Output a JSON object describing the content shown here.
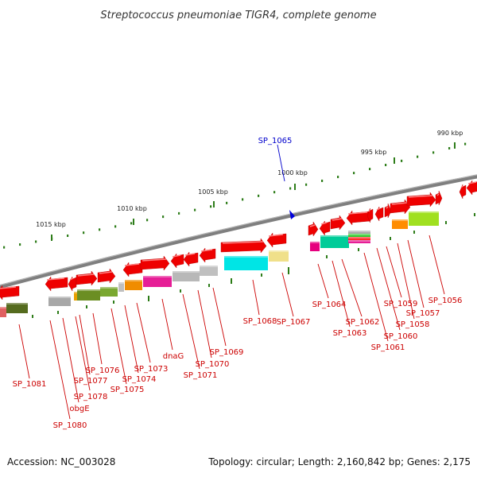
{
  "title": "Streptococcus pneumoniae TIGR4, complete genome",
  "footer": {
    "accession": "Accession: NC_003028",
    "summary": "Topology: circular; Length: 2,160,842 bp; Genes: 2,175"
  },
  "colors": {
    "backbone": "#7a7a7a",
    "tick": "#2e7d1a",
    "label": "#cc0000",
    "highlight": "#0000cc",
    "gene": "#ee0000"
  },
  "ticks": [
    {
      "text": "990 kbp"
    },
    {
      "text": "995 kbp"
    },
    {
      "text": "1000 kbp"
    },
    {
      "text": "1005 kbp"
    },
    {
      "text": "1010 kbp"
    },
    {
      "text": "1015 kbp"
    }
  ],
  "genes": [
    {
      "name": "SP_1065",
      "highlight": true
    },
    {
      "name": "SP_1056"
    },
    {
      "name": "SP_1057"
    },
    {
      "name": "SP_1058"
    },
    {
      "name": "SP_1059"
    },
    {
      "name": "SP_1060"
    },
    {
      "name": "SP_1061"
    },
    {
      "name": "SP_1062"
    },
    {
      "name": "SP_1063"
    },
    {
      "name": "SP_1064"
    },
    {
      "name": "SP_1067"
    },
    {
      "name": "SP_1068"
    },
    {
      "name": "SP_1069"
    },
    {
      "name": "SP_1070"
    },
    {
      "name": "SP_1071"
    },
    {
      "name": "dnaG"
    },
    {
      "name": "SP_1073"
    },
    {
      "name": "SP_1074"
    },
    {
      "name": "SP_1075"
    },
    {
      "name": "SP_1076"
    },
    {
      "name": "SP_1077"
    },
    {
      "name": "SP_1078"
    },
    {
      "name": "obgE"
    },
    {
      "name": "SP_1080"
    },
    {
      "name": "SP_1081"
    }
  ]
}
